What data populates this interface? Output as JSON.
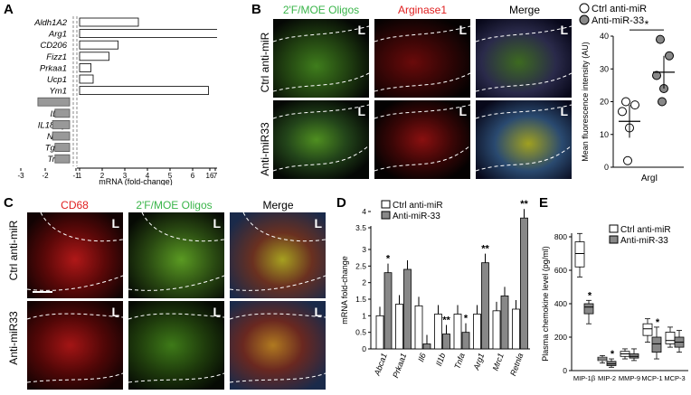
{
  "panels": {
    "A": {
      "label": "A",
      "genes": [
        "Aldh1A2",
        "Arg1",
        "CD206",
        "Fizz1",
        "Prkaa1",
        "Ucp1",
        "Ym1",
        "Ifnb1",
        "IL1a",
        "IL18rap",
        "Nox1",
        "Tgfb2",
        "Traf2"
      ],
      "values": [
        3.6,
        16.5,
        2.7,
        2.3,
        1.5,
        1.6,
        6.7,
        -2.3,
        -1.6,
        -1.7,
        -1.7,
        -1.6,
        -1.6
      ],
      "xticks": [
        "-3",
        "-2",
        "-1",
        "1",
        "2",
        "3",
        "4",
        "5",
        "6",
        "7",
        "16",
        "17"
      ],
      "xlabel": "mRNA (fold-change)"
    },
    "B": {
      "label": "B",
      "headers": [
        "2'F/MOE Oligos",
        "Arginase1",
        "Merge"
      ],
      "rows": [
        "Ctrl anti-miR",
        "Anti-miR33"
      ],
      "L": "L",
      "legend": [
        "Ctrl anti-miR",
        "Anti-miR-33"
      ],
      "ylabel": "Mean fluorescence intensity (AU)",
      "yticks": [
        "0",
        "10",
        "20",
        "30",
        "40"
      ],
      "xlabel": "ArgI",
      "sig": "*",
      "ctrl_points": [
        20,
        19,
        17,
        12,
        2
      ],
      "anti_points": [
        39,
        34,
        28,
        24,
        20
      ],
      "ctrl_mean": 14,
      "anti_mean": 29
    },
    "C": {
      "label": "C",
      "headers": [
        "CD68",
        "2'F/MOE Oligos",
        "Merge"
      ],
      "rows": [
        "Ctrl anti-miR",
        "Anti-miR33"
      ],
      "L": "L"
    },
    "D": {
      "label": "D",
      "legend": [
        "Ctrl anti-miR",
        "Anti-miR-33"
      ],
      "ylabel": "mRNA fold-change",
      "yticks": [
        "0",
        "0.5",
        "1",
        "1.5",
        "2",
        "2.5",
        "3",
        "3.5",
        "4"
      ],
      "categories": [
        "Abca1",
        "Prkaa1",
        "Il6",
        "Il1b",
        "Tnfa",
        "Arg1",
        "Mrc1",
        "Retnla"
      ],
      "ctrl": [
        1.0,
        1.35,
        1.3,
        1.05,
        1.05,
        1.05,
        1.15,
        1.2
      ],
      "anti": [
        2.3,
        2.4,
        0.15,
        0.45,
        0.5,
        2.6,
        1.6,
        3.8
      ],
      "sig": [
        "*",
        "",
        "",
        "**",
        "*",
        "**",
        "",
        "**"
      ]
    },
    "E": {
      "label": "E",
      "legend": [
        "Ctrl anti-miR",
        "Anti-miR-33"
      ],
      "ylabel": "Plasma chemokine level (pg/ml)",
      "yticks": [
        "0",
        "200",
        "400",
        "600",
        "800"
      ],
      "categories": [
        "MIP-1β",
        "MIP-2",
        "MMP-9",
        "MCP-1",
        "MCP-3"
      ],
      "ctrl": [
        [
          560,
          620,
          700,
          770,
          820
        ],
        [
          45,
          60,
          70,
          80,
          90
        ],
        [
          70,
          85,
          100,
          115,
          130
        ],
        [
          170,
          210,
          250,
          280,
          310
        ],
        [
          140,
          160,
          180,
          230,
          260
        ]
      ],
      "anti": [
        [
          280,
          340,
          380,
          400,
          420
        ],
        [
          20,
          30,
          40,
          55,
          70
        ],
        [
          60,
          75,
          85,
          100,
          130
        ],
        [
          70,
          110,
          160,
          200,
          260
        ],
        [
          110,
          140,
          170,
          200,
          240
        ]
      ],
      "sig": [
        "*",
        "*",
        "",
        "*",
        ""
      ]
    }
  },
  "colors": {
    "anti": "#8c8c8c",
    "ctrl": "#ffffff",
    "green": "#4caf50",
    "red": "#d9261c"
  }
}
